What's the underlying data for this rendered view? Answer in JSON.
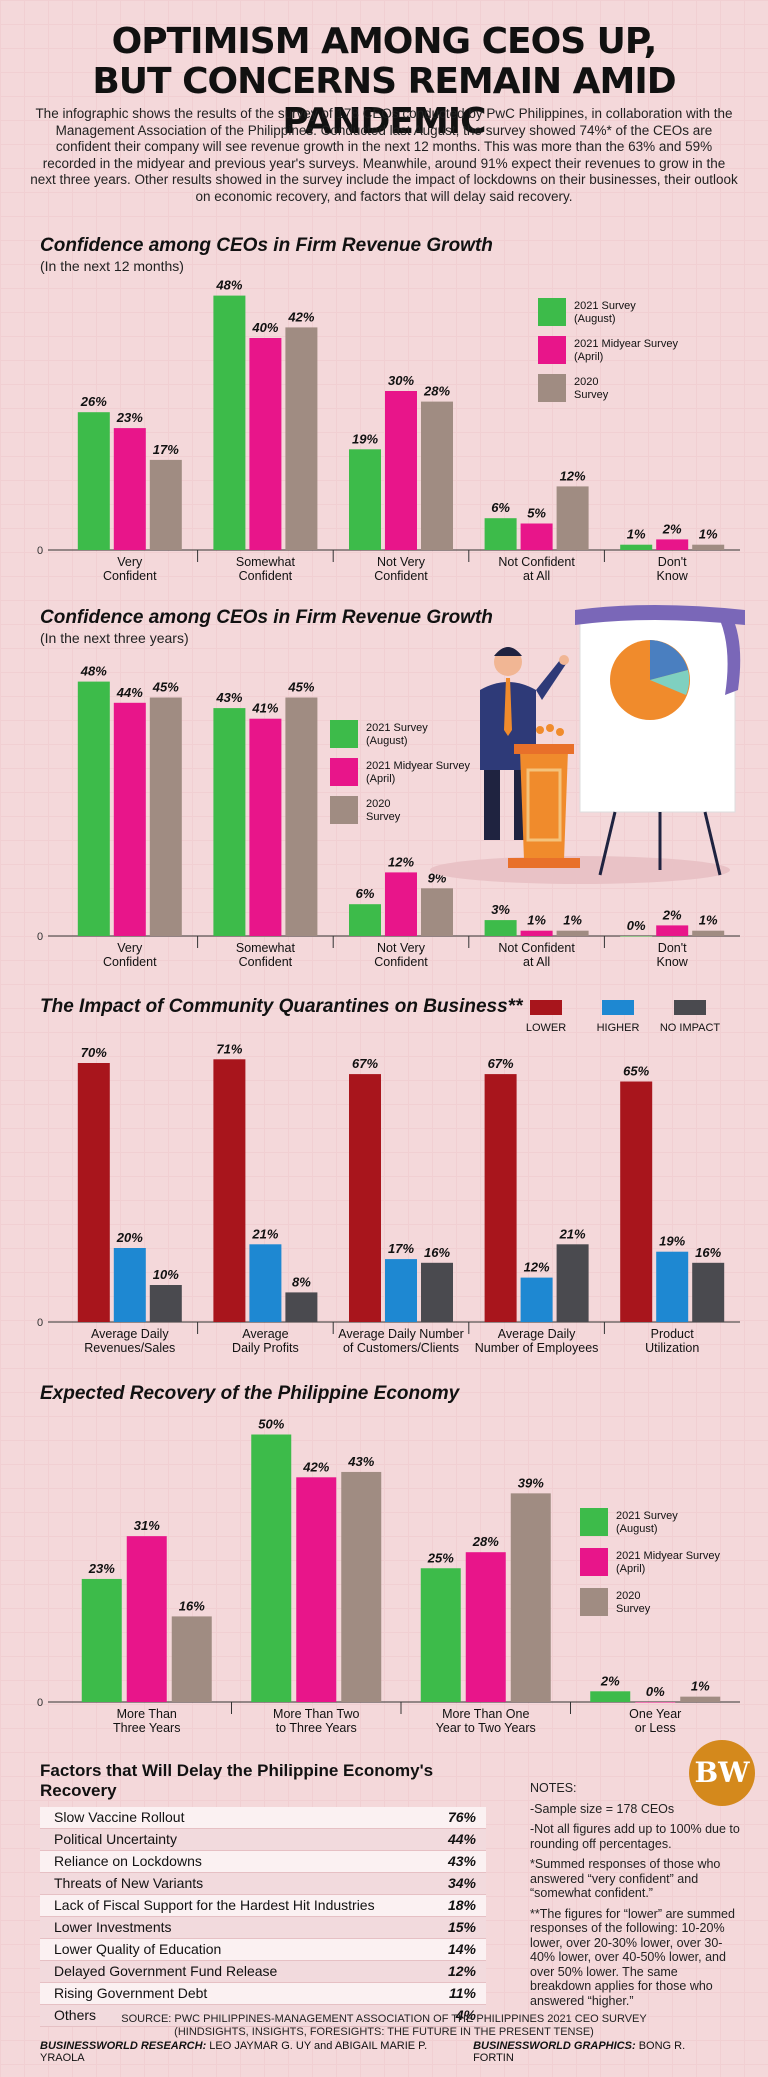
{
  "header": {
    "title_line1": "OPTIMISM AMONG CEOS UP,",
    "title_line2": "BUT CONCERNS REMAIN AMID PANDEMIC",
    "intro": "The infographic shows the results of the survey of 178 CEOs conducted by PwC Philippines, in collaboration with the Management Association of the Philippines. Conducted last August, the survey showed 74%* of the CEOs are confident their company will see revenue growth in the next 12 months. This was more than the 63% and 59% recorded in the midyear and previous year's surveys. Meanwhile, around 91% expect their revenues to grow in the next three years. Other results showed in the survey include the impact of lockdowns on their businesses, their outlook on economic recovery, and factors that will delay said recovery."
  },
  "colors": {
    "green": "#3dbb4a",
    "magenta": "#e8158a",
    "taupe": "#a08c82",
    "red": "#a8151c",
    "blue": "#1e88d2",
    "gray": "#4a4a4f"
  },
  "chart_data": [
    {
      "type": "bar",
      "title": "Confidence among CEOs in Firm Revenue Growth",
      "subtitle": "(In the next 12 months)",
      "categories": [
        "Very Confident",
        "Somewhat Confident",
        "Not Very Confident",
        "Not Confident at All",
        "Don't Know"
      ],
      "series": [
        {
          "name": "2021 Survey (August)",
          "color": "#3dbb4a",
          "values": [
            26,
            48,
            19,
            6,
            1
          ]
        },
        {
          "name": "2021 Midyear Survey (April)",
          "color": "#e8158a",
          "values": [
            23,
            40,
            30,
            5,
            2
          ]
        },
        {
          "name": "2020 Survey",
          "color": "#a08c82",
          "values": [
            17,
            42,
            28,
            12,
            1
          ]
        }
      ],
      "y_zero_label": "0",
      "legend": "right"
    },
    {
      "type": "bar",
      "title": "Confidence among CEOs in Firm Revenue Growth",
      "subtitle": "(In the next three years)",
      "categories": [
        "Very Confident",
        "Somewhat Confident",
        "Not Very Confident",
        "Not Confident at All",
        "Don't Know"
      ],
      "series": [
        {
          "name": "2021 Survey (August)",
          "color": "#3dbb4a",
          "values": [
            48,
            43,
            6,
            3,
            0
          ]
        },
        {
          "name": "2021 Midyear Survey (April)",
          "color": "#e8158a",
          "values": [
            44,
            41,
            12,
            1,
            2
          ]
        },
        {
          "name": "2020 Survey",
          "color": "#a08c82",
          "values": [
            45,
            45,
            9,
            1,
            1
          ]
        }
      ],
      "y_zero_label": "0",
      "legend": "center"
    },
    {
      "type": "bar",
      "title": "The Impact of Community Quarantines on Business**",
      "categories": [
        "Average Daily Revenues/Sales",
        "Average Daily Profits",
        "Average Daily Number of Customers/Clients",
        "Average Daily Number of Employees",
        "Product Utilization"
      ],
      "series": [
        {
          "name": "LOWER",
          "color": "#a8151c",
          "values": [
            70,
            71,
            67,
            67,
            65
          ]
        },
        {
          "name": "HIGHER",
          "color": "#1e88d2",
          "values": [
            20,
            21,
            17,
            12,
            19
          ]
        },
        {
          "name": "NO IMPACT",
          "color": "#4a4a4f",
          "values": [
            10,
            8,
            16,
            21,
            16
          ]
        }
      ],
      "y_zero_label": "0",
      "legend": "top"
    },
    {
      "type": "bar",
      "title": "Expected Recovery of the Philippine Economy",
      "categories": [
        "More Than Three Years",
        "More Than Two to Three Years",
        "More Than One Year to Two Years",
        "One Year or Less"
      ],
      "series": [
        {
          "name": "2021 Survey (August)",
          "color": "#3dbb4a",
          "values": [
            23,
            50,
            25,
            2
          ]
        },
        {
          "name": "2021 Midyear Survey (April)",
          "color": "#e8158a",
          "values": [
            31,
            42,
            28,
            0
          ]
        },
        {
          "name": "2020 Survey",
          "color": "#a08c82",
          "values": [
            16,
            43,
            39,
            1
          ]
        }
      ],
      "y_zero_label": "0",
      "legend": "right"
    },
    {
      "type": "table",
      "title": "Factors that Will Delay the Philippine Economy's Recovery",
      "rows": [
        {
          "label": "Slow Vaccine Rollout",
          "value": "76%"
        },
        {
          "label": "Political Uncertainty",
          "value": "44%"
        },
        {
          "label": "Reliance on Lockdowns",
          "value": "43%"
        },
        {
          "label": "Threats of New Variants",
          "value": "34%"
        },
        {
          "label": "Lack of Fiscal Support for the Hardest Hit Industries",
          "value": "18%"
        },
        {
          "label": "Lower Investments",
          "value": "15%"
        },
        {
          "label": "Lower Quality of Education",
          "value": "14%"
        },
        {
          "label": "Delayed Government Fund Release",
          "value": "12%"
        },
        {
          "label": "Rising Government Debt",
          "value": "11%"
        },
        {
          "label": "Others",
          "value": "4%"
        }
      ]
    }
  ],
  "notes": {
    "heading": "NOTES:",
    "items": [
      "-Sample size = 178 CEOs",
      "-Not all figures add up to 100% due to rounding off percentages.",
      "*Summed responses of those who answered “very confident” and “somewhat confident.”",
      "**The figures for “lower” are summed responses of the following: 10-20% lower, over 20-30% lower, over 30-40% lower, over 40-50% lower, and over 50% lower. The same breakdown applies for those who answered “higher.”"
    ]
  },
  "footer": {
    "source_line1": "SOURCE: PWC PHILIPPINES-MANAGEMENT ASSOCIATION OF THE PHILIPPINES 2021 CEO SURVEY",
    "source_line2": "(HINDSIGHTS, INSIGHTS, FORESIGHTS: THE FUTURE IN THE PRESENT TENSE)",
    "research_label": "BUSINESSWORLD RESEARCH:",
    "research_names": "LEO JAYMAR G. UY and ABIGAIL MARIE P. YRAOLA",
    "graphics_label": "BUSINESSWORLD GRAPHICS:",
    "graphics_names": "BONG R. FORTIN",
    "logo": "BW"
  }
}
